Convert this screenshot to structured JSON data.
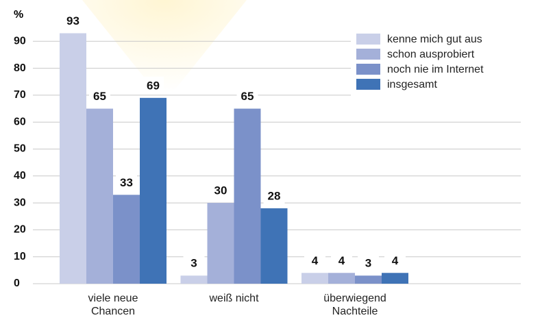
{
  "chart_data": {
    "type": "bar",
    "y_label": "%",
    "categories": [
      "viele neue Chancen",
      "weiß nicht",
      "überwiegend Nachteile"
    ],
    "series": [
      {
        "name": "kenne mich gut aus",
        "color": "#c9cfe8",
        "values": [
          93,
          3,
          4
        ]
      },
      {
        "name": "schon ausprobiert",
        "color": "#a4b0d9",
        "values": [
          65,
          30,
          4
        ]
      },
      {
        "name": "noch nie im Internet",
        "color": "#7b91c9",
        "values": [
          33,
          65,
          3
        ]
      },
      {
        "name": "insgesamt",
        "color": "#3f73b6",
        "values": [
          69,
          28,
          4
        ]
      }
    ],
    "ylim": [
      0,
      100
    ],
    "yticks": [
      0,
      10,
      20,
      30,
      40,
      50,
      60,
      70,
      80,
      90
    ],
    "grid": true,
    "legend": "upper right"
  }
}
